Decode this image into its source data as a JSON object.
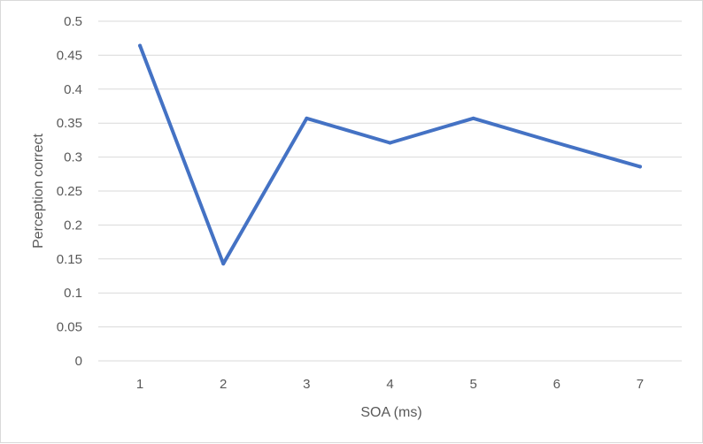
{
  "chart_data": {
    "type": "line",
    "title": "",
    "xlabel": "SOA (ms)",
    "ylabel": "Perception correct",
    "categories": [
      "1",
      "2",
      "3",
      "4",
      "5",
      "6",
      "7"
    ],
    "series": [
      {
        "values": [
          0.464,
          0.143,
          0.357,
          0.321,
          0.357,
          0.321,
          0.286
        ],
        "color": "#4472c4"
      }
    ],
    "y_ticks": [
      "0",
      "0.05",
      "0.1",
      "0.15",
      "0.2",
      "0.25",
      "0.3",
      "0.35",
      "0.4",
      "0.45",
      "0.5"
    ],
    "ylim": [
      0,
      0.5
    ],
    "grid": "horizontal",
    "legend": "none",
    "gridline_color": "#d9d9d9",
    "text_color": "#595959"
  }
}
